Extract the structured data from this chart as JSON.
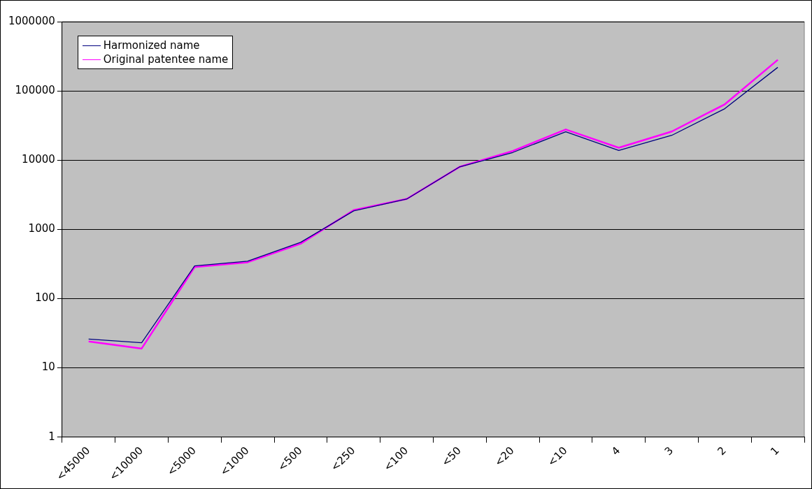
{
  "chart_data": {
    "type": "line",
    "log": "y",
    "grid": "y",
    "legend": "top left",
    "marker": "none",
    "line_style": "solid",
    "categories": [
      "<45000",
      "<10000",
      "<5000",
      "<1000",
      "<500",
      "<250",
      "<100",
      "<50",
      "<20",
      "<10",
      "4",
      "3",
      "2",
      "1"
    ],
    "ylim": [
      1,
      1000000
    ],
    "yticks": [
      1,
      10,
      100,
      1000,
      10000,
      100000,
      1000000
    ],
    "series": [
      {
        "name": "Harmonized name",
        "color": "#000080",
        "values": [
          26,
          23,
          296,
          347,
          650,
          1850,
          2740,
          8000,
          12900,
          25700,
          13800,
          22800,
          55300,
          219000
        ]
      },
      {
        "name": "Original patentee name",
        "color": "#ff00ff",
        "values": [
          24,
          19,
          285,
          335,
          620,
          1900,
          2750,
          8000,
          13550,
          27700,
          15100,
          25900,
          64000,
          281000
        ]
      }
    ]
  }
}
